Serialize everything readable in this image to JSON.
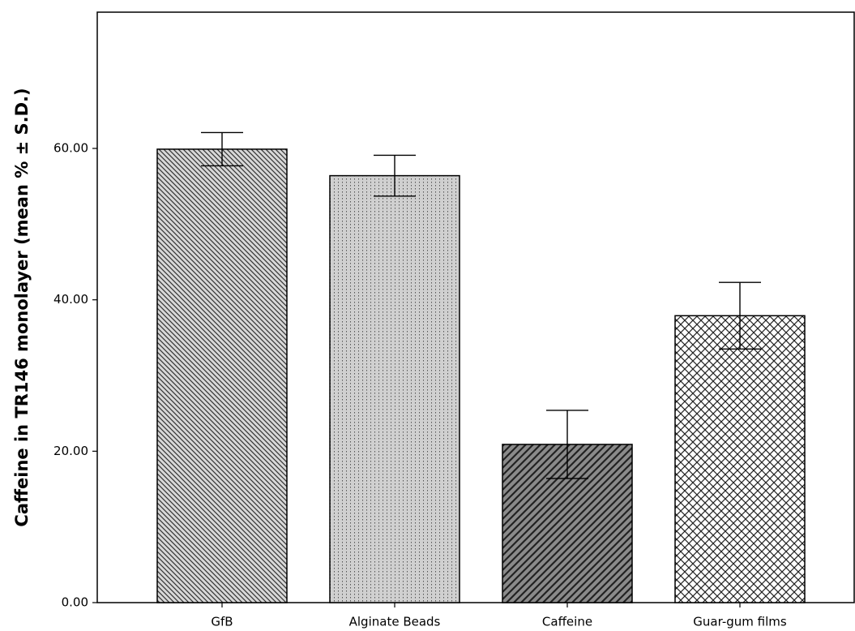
{
  "chart_data": {
    "type": "bar",
    "y_label": "Caffeine in TR146 monolayer (mean % ± S.D.)",
    "categories": [
      "GfB",
      "Alginate Beads",
      "Caffeine",
      "Guar-gum films"
    ],
    "values": [
      59.9,
      56.4,
      20.9,
      37.9
    ],
    "errors": [
      2.2,
      2.7,
      4.5,
      4.4
    ],
    "colors": [
      "#d8d8d8",
      "#d0d0d0",
      "#8a8a8a",
      "#ffffff"
    ],
    "patterns": [
      "backslash",
      "dots",
      "slash",
      "cross"
    ],
    "ylim": [
      0,
      78
    ],
    "yticks": [
      {
        "value": 0,
        "label": "0.00"
      },
      {
        "value": 20,
        "label": "20.00"
      },
      {
        "value": 40,
        "label": "40.00"
      },
      {
        "value": 60,
        "label": "60.00"
      }
    ],
    "grid": false
  }
}
